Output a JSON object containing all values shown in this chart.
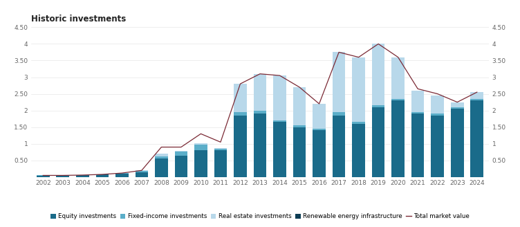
{
  "title": "Historic investments",
  "years": [
    2002,
    2003,
    2004,
    2005,
    2006,
    2007,
    2008,
    2009,
    2010,
    2011,
    2012,
    2013,
    2014,
    2015,
    2016,
    2017,
    2018,
    2019,
    2020,
    2021,
    2022,
    2023,
    2024
  ],
  "equity": [
    0.04,
    0.04,
    0.05,
    0.07,
    0.1,
    0.15,
    0.55,
    0.65,
    0.8,
    0.8,
    1.85,
    1.9,
    1.65,
    1.5,
    1.4,
    1.85,
    1.6,
    2.1,
    2.3,
    1.9,
    1.85,
    2.05,
    2.3
  ],
  "fixed_income": [
    0.01,
    0.01,
    0.01,
    0.01,
    0.02,
    0.04,
    0.08,
    0.12,
    0.17,
    0.04,
    0.1,
    0.1,
    0.05,
    0.05,
    0.05,
    0.1,
    0.05,
    0.05,
    0.05,
    0.05,
    0.05,
    0.05,
    0.05
  ],
  "real_estate": [
    0.0,
    0.0,
    0.0,
    0.0,
    0.0,
    0.01,
    0.07,
    0.02,
    0.05,
    0.02,
    0.85,
    1.1,
    1.35,
    1.15,
    0.75,
    1.8,
    1.95,
    1.85,
    1.25,
    0.65,
    0.55,
    0.15,
    0.2
  ],
  "renewable": [
    0.0,
    0.0,
    0.0,
    0.0,
    0.0,
    0.0,
    0.0,
    0.0,
    0.0,
    0.0,
    0.0,
    0.0,
    0.0,
    0.0,
    0.0,
    0.0,
    0.0,
    0.0,
    0.0,
    0.0,
    0.0,
    0.0,
    0.0
  ],
  "total_market_value": [
    0.05,
    0.05,
    0.06,
    0.08,
    0.12,
    0.2,
    0.9,
    0.9,
    1.3,
    1.05,
    2.8,
    3.1,
    3.05,
    2.7,
    2.2,
    3.75,
    3.6,
    4.0,
    3.6,
    2.65,
    2.5,
    2.25,
    2.55
  ],
  "color_equity": "#1a6b8a",
  "color_fixed_income": "#5baec9",
  "color_real_estate": "#b8d8ea",
  "color_renewable": "#0d3d54",
  "color_line": "#7b2a35",
  "ylim": [
    0,
    4.5
  ],
  "yticks": [
    0,
    0.5,
    1.0,
    1.5,
    2.0,
    2.5,
    3.0,
    3.5,
    4.0,
    4.5
  ],
  "ytick_labels_left": [
    "",
    "0.50",
    "1",
    "1.50",
    "2",
    "2.50",
    "3",
    "3.50",
    "4",
    "4.50"
  ],
  "ytick_labels_right": [
    "",
    "0.50",
    "1",
    "1.50",
    "2",
    "2.50",
    "3",
    "3.50",
    "4",
    "4.50"
  ],
  "background_color": "#ffffff",
  "title_fontsize": 8.5,
  "tick_fontsize": 6.5,
  "legend_labels": [
    "Equity investments",
    "Fixed-income investments",
    "Real estate investments",
    "Renewable energy infrastructure",
    "Total market value"
  ]
}
